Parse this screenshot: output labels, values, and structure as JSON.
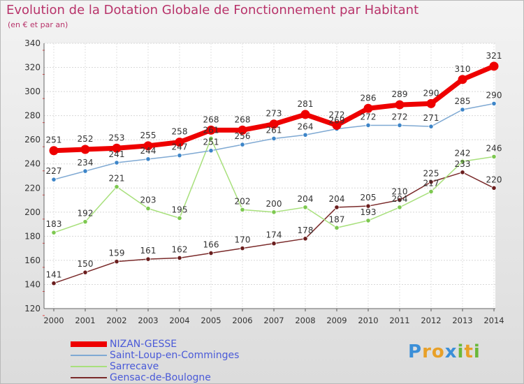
{
  "title": "Evolution de la Dotation Globale de Fonctionnement par Habitant",
  "subtitle": "(en € et par an)",
  "brand": {
    "letters": [
      {
        "char": "P",
        "color": "#3b8fd8"
      },
      {
        "char": "r",
        "color": "#e8a028"
      },
      {
        "char": "o",
        "color": "#e8a028"
      },
      {
        "char": "x",
        "color": "#3b8fd8"
      },
      {
        "char": "i",
        "color": "#6ab83a"
      },
      {
        "char": "t",
        "color": "#e8a028"
      },
      {
        "char": "i",
        "color": "#6ab83a"
      }
    ]
  },
  "chart_data": {
    "type": "line",
    "title": "Evolution de la Dotation Globale de Fonctionnement par Habitant",
    "subtitle": "(en € et par an)",
    "xlabel": "",
    "ylabel": "",
    "ylim": [
      120,
      340
    ],
    "yticks": [
      120,
      140,
      160,
      180,
      200,
      220,
      240,
      260,
      280,
      300,
      320,
      340
    ],
    "grid": true,
    "legend_position": "bottom-left",
    "x": [
      "2000",
      "2001",
      "2002",
      "2003",
      "2004",
      "2005",
      "2006",
      "2007",
      "2008",
      "2009",
      "2010",
      "2011",
      "2012",
      "2013",
      "2014"
    ],
    "series": [
      {
        "name": "NIZAN-GESSE",
        "color": "#ee0000",
        "emphasis": true,
        "values": [
          251,
          252,
          253,
          255,
          258,
          268,
          268,
          273,
          281,
          272,
          286,
          289,
          290,
          310,
          321
        ]
      },
      {
        "name": "Saint-Loup-en-Comminges",
        "color": "#7fa9d3",
        "point_color": "#3d85c8",
        "values": [
          227,
          234,
          241,
          244,
          247,
          251,
          256,
          261,
          264,
          269,
          272,
          272,
          271,
          285,
          290
        ]
      },
      {
        "name": "Sarrecave",
        "color": "#a8e07c",
        "point_color": "#7dc850",
        "values": [
          183,
          192,
          221,
          203,
          195,
          261,
          202,
          200,
          204,
          187,
          193,
          204,
          217,
          242,
          246
        ]
      },
      {
        "name": "Gensac-de-Boulogne",
        "color": "#7a2a2a",
        "point_color": "#6a1e1e",
        "values": [
          141,
          150,
          159,
          161,
          162,
          166,
          170,
          174,
          178,
          204,
          205,
          210,
          225,
          233,
          220
        ]
      }
    ],
    "value_labels": [
      [
        "251",
        "252",
        "253",
        "255",
        "258",
        "268",
        "268",
        "273",
        "281",
        "272",
        "286",
        "289",
        "290",
        "310",
        "321"
      ],
      [
        "227",
        "234",
        "241",
        "244",
        "247",
        "251",
        "256",
        "261",
        "264",
        "269",
        "272",
        "272",
        "271",
        "285",
        "290"
      ],
      [
        "183",
        "192",
        "221",
        "203",
        "195",
        "261",
        "202",
        "200",
        "204",
        "187",
        "193",
        "204",
        "217",
        "242",
        "246"
      ],
      [
        "141",
        "150",
        "159",
        "161",
        "162",
        "166",
        "170",
        "174",
        "178",
        "204",
        "205",
        "210",
        "225",
        "233",
        "220"
      ]
    ]
  }
}
